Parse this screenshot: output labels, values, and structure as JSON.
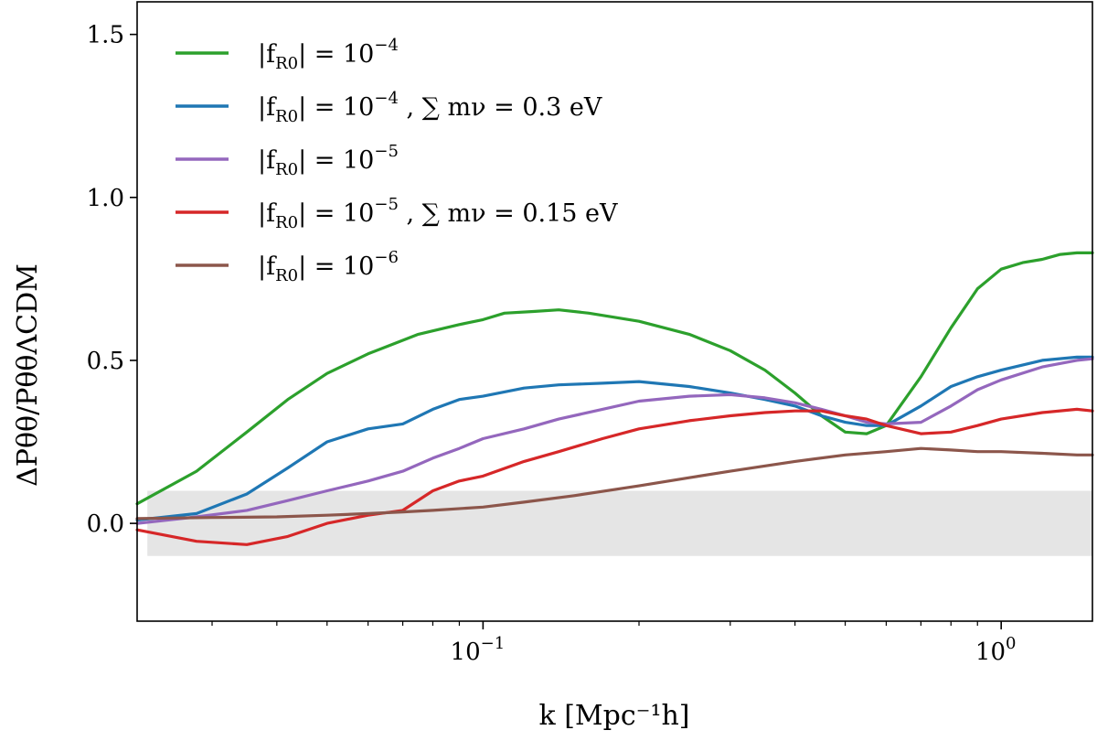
{
  "chart_data": {
    "type": "line",
    "xscale": "log",
    "xlim": [
      0.0215,
      1.5
    ],
    "ylim": [
      -0.3,
      1.6
    ],
    "xlabel": "k  [Mpc⁻¹h]",
    "ylabel": "ΔPθθ/PθθΛCDM",
    "legend_position": "top-left",
    "grid": false,
    "yticks": [
      {
        "value": 0.0,
        "label": "0.0"
      },
      {
        "value": 0.5,
        "label": "0.5"
      },
      {
        "value": 1.0,
        "label": "1.0"
      },
      {
        "value": 1.5,
        "label": "1.5"
      }
    ],
    "xticks": [
      {
        "value": 0.1,
        "base": "10",
        "exp": "−1"
      },
      {
        "value": 1.0,
        "base": "10",
        "exp": "0"
      }
    ],
    "band": {
      "ymin": -0.1,
      "ymax": 0.1,
      "color": "#e5e5e5"
    },
    "series": [
      {
        "name": "|fR0| = 10⁻⁴",
        "legend": {
          "lhs": "|f",
          "sub": "R0",
          "rhs": "| = 10",
          "exp": "−4",
          "extra": ""
        },
        "color": "#2ca02c",
        "points": [
          [
            0.0215,
            0.06
          ],
          [
            0.028,
            0.16
          ],
          [
            0.035,
            0.28
          ],
          [
            0.042,
            0.38
          ],
          [
            0.05,
            0.46
          ],
          [
            0.06,
            0.52
          ],
          [
            0.075,
            0.58
          ],
          [
            0.09,
            0.61
          ],
          [
            0.1,
            0.625
          ],
          [
            0.11,
            0.645
          ],
          [
            0.125,
            0.65
          ],
          [
            0.14,
            0.655
          ],
          [
            0.16,
            0.645
          ],
          [
            0.2,
            0.62
          ],
          [
            0.25,
            0.58
          ],
          [
            0.3,
            0.53
          ],
          [
            0.35,
            0.47
          ],
          [
            0.4,
            0.4
          ],
          [
            0.45,
            0.33
          ],
          [
            0.5,
            0.28
          ],
          [
            0.55,
            0.275
          ],
          [
            0.6,
            0.3
          ],
          [
            0.7,
            0.45
          ],
          [
            0.8,
            0.6
          ],
          [
            0.9,
            0.72
          ],
          [
            1.0,
            0.78
          ],
          [
            1.1,
            0.8
          ],
          [
            1.2,
            0.81
          ],
          [
            1.3,
            0.825
          ],
          [
            1.4,
            0.83
          ],
          [
            1.5,
            0.83
          ]
        ]
      },
      {
        "name": "|fR0| = 10⁻⁴ , ∑mν = 0.3 eV",
        "legend": {
          "lhs": "|f",
          "sub": "R0",
          "rhs": "| = 10",
          "exp": "−4",
          "extra": " ,  ∑ mν = 0.3 eV"
        },
        "color": "#1f77b4",
        "points": [
          [
            0.0215,
            0.01
          ],
          [
            0.028,
            0.03
          ],
          [
            0.035,
            0.09
          ],
          [
            0.042,
            0.17
          ],
          [
            0.05,
            0.25
          ],
          [
            0.06,
            0.29
          ],
          [
            0.07,
            0.305
          ],
          [
            0.08,
            0.35
          ],
          [
            0.09,
            0.38
          ],
          [
            0.1,
            0.39
          ],
          [
            0.12,
            0.415
          ],
          [
            0.14,
            0.425
          ],
          [
            0.17,
            0.43
          ],
          [
            0.2,
            0.435
          ],
          [
            0.25,
            0.42
          ],
          [
            0.3,
            0.4
          ],
          [
            0.35,
            0.38
          ],
          [
            0.4,
            0.36
          ],
          [
            0.45,
            0.33
          ],
          [
            0.5,
            0.31
          ],
          [
            0.55,
            0.3
          ],
          [
            0.6,
            0.3
          ],
          [
            0.7,
            0.36
          ],
          [
            0.8,
            0.42
          ],
          [
            0.9,
            0.45
          ],
          [
            1.0,
            0.47
          ],
          [
            1.2,
            0.5
          ],
          [
            1.4,
            0.51
          ],
          [
            1.5,
            0.51
          ]
        ]
      },
      {
        "name": "|fR0| = 10⁻⁵",
        "legend": {
          "lhs": "|f",
          "sub": "R0",
          "rhs": "| = 10",
          "exp": "−5",
          "extra": ""
        },
        "color": "#9467bd",
        "points": [
          [
            0.0215,
            0.0
          ],
          [
            0.028,
            0.02
          ],
          [
            0.035,
            0.04
          ],
          [
            0.042,
            0.07
          ],
          [
            0.05,
            0.1
          ],
          [
            0.06,
            0.13
          ],
          [
            0.07,
            0.16
          ],
          [
            0.08,
            0.2
          ],
          [
            0.09,
            0.23
          ],
          [
            0.1,
            0.26
          ],
          [
            0.12,
            0.29
          ],
          [
            0.14,
            0.32
          ],
          [
            0.17,
            0.35
          ],
          [
            0.2,
            0.375
          ],
          [
            0.25,
            0.39
          ],
          [
            0.3,
            0.395
          ],
          [
            0.35,
            0.385
          ],
          [
            0.4,
            0.37
          ],
          [
            0.45,
            0.35
          ],
          [
            0.5,
            0.33
          ],
          [
            0.55,
            0.31
          ],
          [
            0.6,
            0.305
          ],
          [
            0.7,
            0.31
          ],
          [
            0.8,
            0.36
          ],
          [
            0.9,
            0.41
          ],
          [
            1.0,
            0.44
          ],
          [
            1.2,
            0.48
          ],
          [
            1.4,
            0.5
          ],
          [
            1.5,
            0.505
          ]
        ]
      },
      {
        "name": "|fR0| = 10⁻⁵ , ∑mν = 0.15 eV",
        "legend": {
          "lhs": "|f",
          "sub": "R0",
          "rhs": "| = 10",
          "exp": "−5",
          "extra": " ,  ∑ mν = 0.15 eV"
        },
        "color": "#d62728",
        "points": [
          [
            0.0215,
            -0.02
          ],
          [
            0.028,
            -0.055
          ],
          [
            0.035,
            -0.065
          ],
          [
            0.042,
            -0.04
          ],
          [
            0.05,
            0.0
          ],
          [
            0.06,
            0.025
          ],
          [
            0.07,
            0.04
          ],
          [
            0.08,
            0.1
          ],
          [
            0.09,
            0.13
          ],
          [
            0.1,
            0.145
          ],
          [
            0.12,
            0.19
          ],
          [
            0.14,
            0.22
          ],
          [
            0.17,
            0.26
          ],
          [
            0.2,
            0.29
          ],
          [
            0.25,
            0.315
          ],
          [
            0.3,
            0.33
          ],
          [
            0.35,
            0.34
          ],
          [
            0.4,
            0.345
          ],
          [
            0.45,
            0.345
          ],
          [
            0.5,
            0.33
          ],
          [
            0.55,
            0.32
          ],
          [
            0.6,
            0.3
          ],
          [
            0.7,
            0.275
          ],
          [
            0.8,
            0.28
          ],
          [
            0.9,
            0.3
          ],
          [
            1.0,
            0.32
          ],
          [
            1.2,
            0.34
          ],
          [
            1.4,
            0.35
          ],
          [
            1.5,
            0.345
          ]
        ]
      },
      {
        "name": "|fR0| = 10⁻⁶",
        "legend": {
          "lhs": "|f",
          "sub": "R0",
          "rhs": "| = 10",
          "exp": "−6",
          "extra": ""
        },
        "color": "#8c564b",
        "points": [
          [
            0.0215,
            0.015
          ],
          [
            0.03,
            0.018
          ],
          [
            0.04,
            0.02
          ],
          [
            0.05,
            0.025
          ],
          [
            0.06,
            0.03
          ],
          [
            0.07,
            0.035
          ],
          [
            0.08,
            0.04
          ],
          [
            0.1,
            0.05
          ],
          [
            0.12,
            0.065
          ],
          [
            0.15,
            0.085
          ],
          [
            0.2,
            0.115
          ],
          [
            0.25,
            0.14
          ],
          [
            0.3,
            0.16
          ],
          [
            0.4,
            0.19
          ],
          [
            0.5,
            0.21
          ],
          [
            0.6,
            0.22
          ],
          [
            0.7,
            0.23
          ],
          [
            0.8,
            0.225
          ],
          [
            0.9,
            0.22
          ],
          [
            1.0,
            0.22
          ],
          [
            1.2,
            0.215
          ],
          [
            1.4,
            0.21
          ],
          [
            1.5,
            0.21
          ]
        ]
      }
    ]
  }
}
